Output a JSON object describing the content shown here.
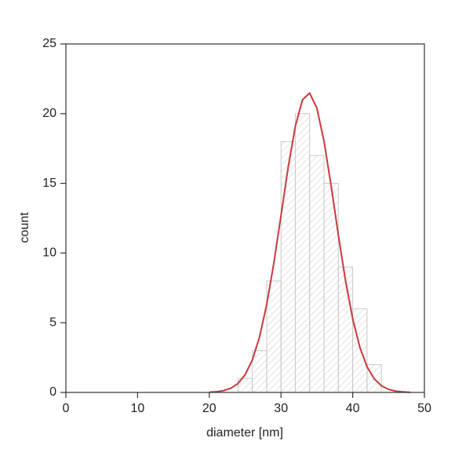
{
  "chart_data": {
    "type": "histogram",
    "xlabel": "diameter [nm]",
    "ylabel": "count",
    "bins": [
      24,
      26,
      28,
      30,
      32,
      34,
      36,
      38,
      40,
      42,
      44
    ],
    "values": [
      1,
      3,
      8,
      18,
      20,
      17,
      15,
      9,
      6,
      2
    ],
    "color": "#c8c8c8",
    "fit": {
      "color": "#c8393b",
      "x": [
        20,
        21,
        22,
        23,
        24,
        25,
        26,
        27,
        28,
        29,
        30,
        31,
        32,
        33,
        34,
        35,
        36,
        37,
        38,
        39,
        40,
        41,
        42,
        43,
        44,
        45,
        46,
        47,
        48
      ],
      "values": [
        0.02,
        0.05,
        0.13,
        0.3,
        0.64,
        1.27,
        2.33,
        3.97,
        6.29,
        9.27,
        12.69,
        16.15,
        19.1,
        21.0,
        21.47,
        20.4,
        18.02,
        14.79,
        11.29,
        8.01,
        5.28,
        3.24,
        1.84,
        0.98,
        0.48,
        0.22,
        0.09,
        0.04,
        0.01
      ]
    },
    "xlim": [
      0,
      50
    ],
    "xticks": [
      0,
      10,
      20,
      30,
      40,
      50
    ],
    "ylim": [
      0,
      25
    ],
    "yticks": [
      0,
      5,
      10,
      15,
      20,
      25
    ]
  }
}
